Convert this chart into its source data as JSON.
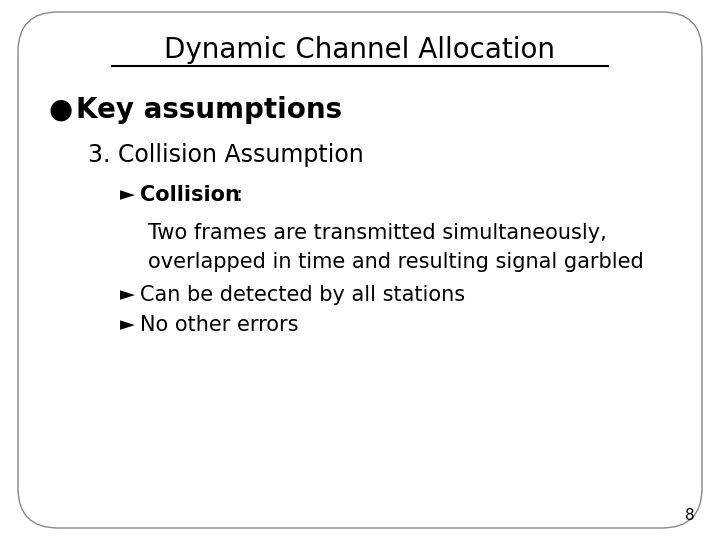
{
  "title": "Dynamic Channel Allocation",
  "background_color": "#ffffff",
  "slide_bg": "#ffffff",
  "slide_border": "#888888",
  "bullet_char": "●",
  "bullet1": "Key assumptions",
  "sub1": "3. Collision Assumption",
  "arrow_char": "►",
  "collision_bold": "Collision",
  "collision_rest": ":",
  "line1": "Two frames are transmitted simultaneously,",
  "line2": "overlapped in time and resulting signal garbled",
  "arrow2_text": "Can be detected by all stations",
  "arrow3_text": "No other errors",
  "page_num": "8",
  "title_fontsize": 20,
  "bullet1_fontsize": 20,
  "sub1_fontsize": 17,
  "body_fontsize": 15,
  "arrow_fontsize": 15,
  "page_fontsize": 11
}
